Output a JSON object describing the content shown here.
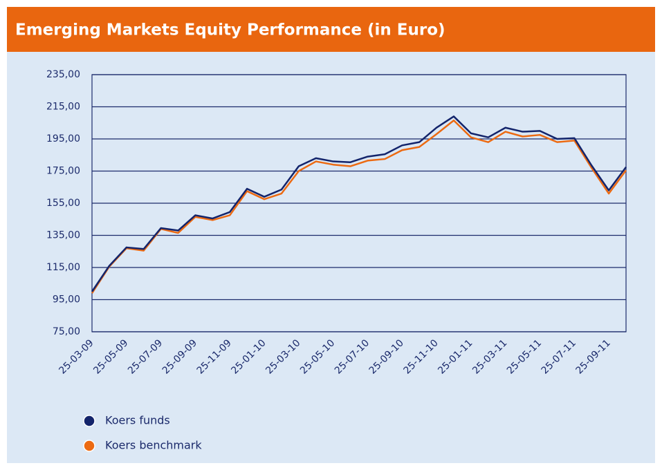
{
  "chart_data": {
    "type": "line",
    "title": "Emerging Markets Equity Performance (in Euro)",
    "categories": [
      "25-03-09",
      null,
      "25-05-09",
      null,
      "25-07-09",
      null,
      "25-09-09",
      null,
      "25-11-09",
      null,
      "25-01-10",
      null,
      "25-03-10",
      null,
      "25-05-10",
      null,
      "25-07-10",
      null,
      "25-09-10",
      null,
      "25-11-10",
      null,
      "25-01-11",
      null,
      "25-03-11",
      null,
      "25-05-11",
      null,
      "25-07-11",
      null,
      "25-09-11",
      null
    ],
    "series": [
      {
        "name": "Koers funds",
        "color": "#13246b",
        "values": [
          100,
          116,
          127.5,
          126.5,
          139.5,
          138,
          147.5,
          145.5,
          149.5,
          164,
          159,
          163.5,
          178,
          183,
          181,
          180.5,
          184,
          185.5,
          191,
          193,
          202,
          209,
          198.5,
          196,
          202,
          199.5,
          200,
          195,
          195.5,
          178.5,
          163,
          177.5
        ]
      },
      {
        "name": "Koers benchmark",
        "color": "#ec6a12",
        "values": [
          99,
          115.5,
          127,
          125.5,
          139,
          136.5,
          146.5,
          144.5,
          147.5,
          162.5,
          157.5,
          161,
          175,
          181,
          179,
          178,
          181.5,
          182.5,
          188,
          190,
          198,
          206.5,
          196,
          193,
          199.5,
          196.5,
          197.5,
          193,
          194,
          177,
          161,
          175.5
        ]
      }
    ],
    "ylim": [
      75,
      235
    ],
    "yticks": [
      {
        "value": 75,
        "label": "75,00"
      },
      {
        "value": 95,
        "label": "95,00"
      },
      {
        "value": 115,
        "label": "115,00"
      },
      {
        "value": 135,
        "label": "135,00"
      },
      {
        "value": 155,
        "label": "155,00"
      },
      {
        "value": 175,
        "label": "175,00"
      },
      {
        "value": 195,
        "label": "195,00"
      },
      {
        "value": 215,
        "label": "215,00"
      },
      {
        "value": 235,
        "label": "235,00"
      }
    ],
    "grid": true,
    "legend": "bottom-left"
  }
}
